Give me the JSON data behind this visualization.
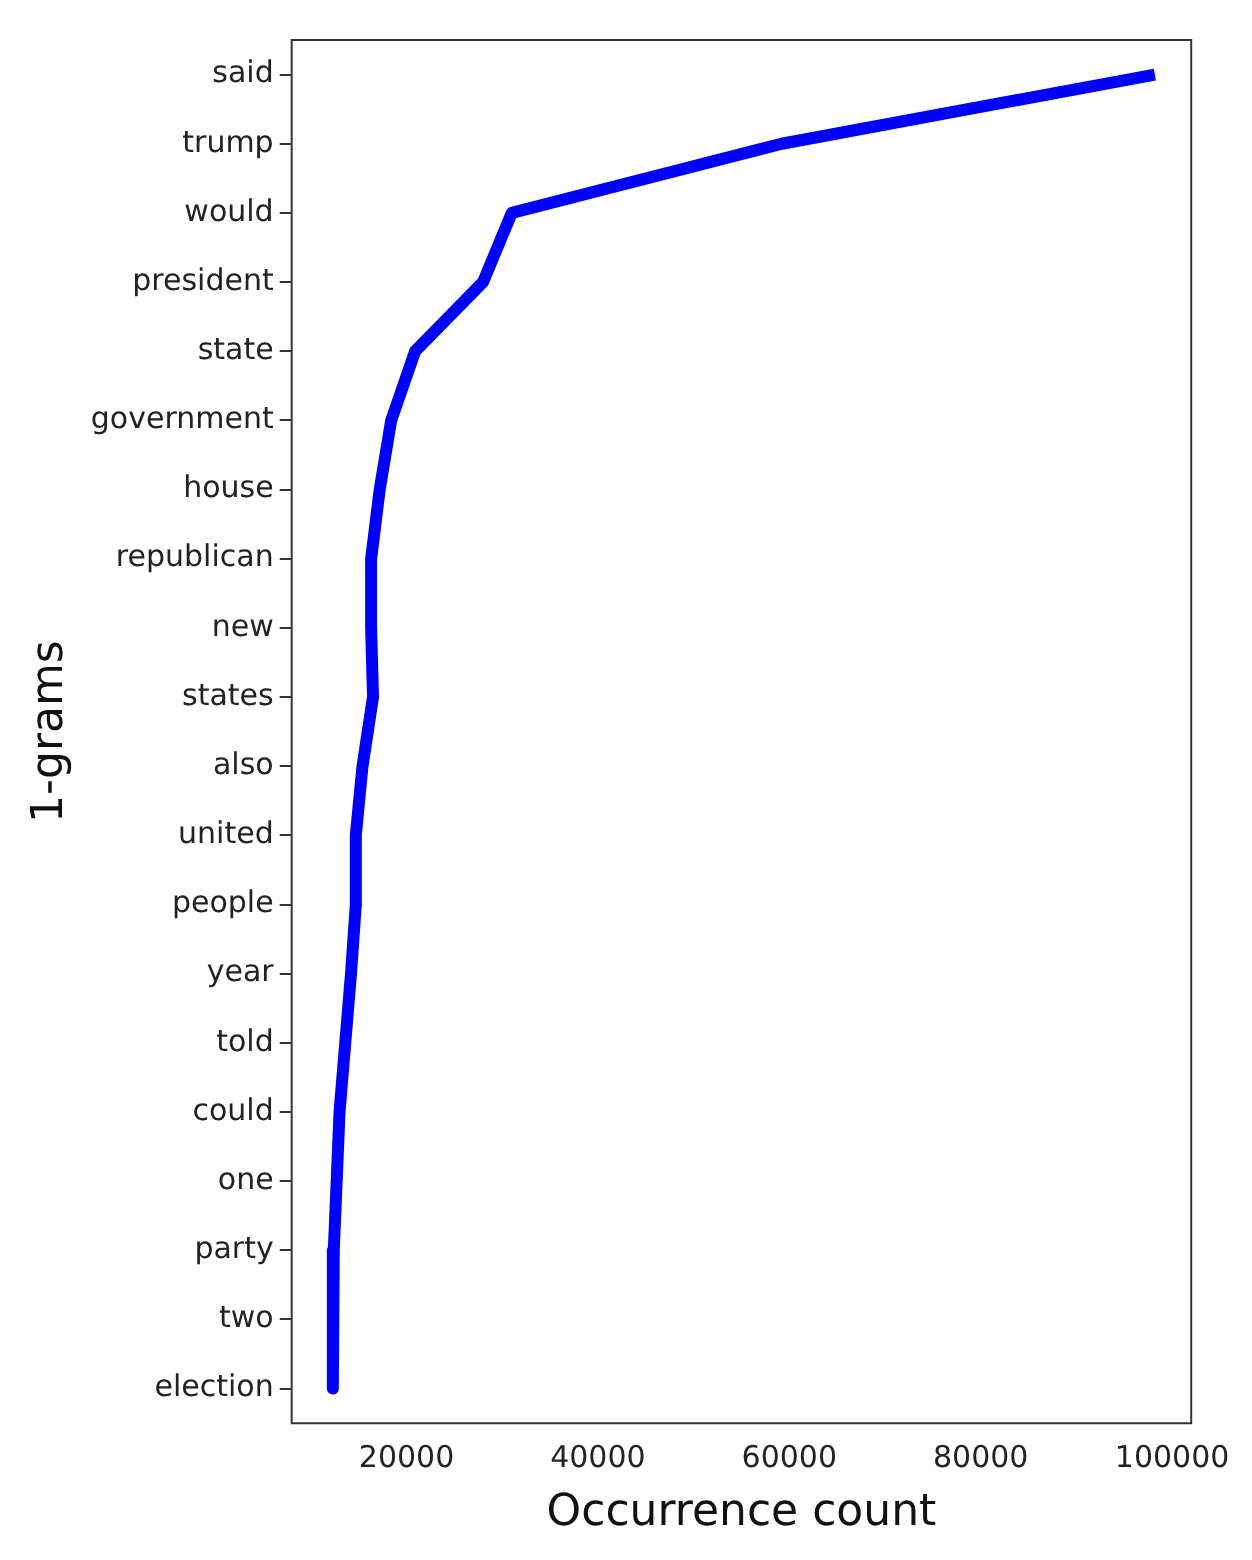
{
  "chart_data": {
    "type": "line",
    "orientation": "horizontal",
    "xlabel": "Occurrence count",
    "ylabel": "1-grams",
    "categories": [
      "said",
      "trump",
      "would",
      "president",
      "state",
      "government",
      "house",
      "republican",
      "new",
      "states",
      "also",
      "united",
      "people",
      "year",
      "told",
      "could",
      "one",
      "party",
      "two",
      "election"
    ],
    "series": [
      {
        "color": "#0000ff",
        "values": [
          98200,
          59200,
          31000,
          28000,
          20900,
          18400,
          17200,
          16300,
          16300,
          16500,
          15400,
          14700,
          14700,
          14200,
          13600,
          13000,
          12700,
          12400,
          12300,
          12300
        ]
      }
    ],
    "xlim": [
      8000,
      102000
    ],
    "xticks": [
      20000,
      40000,
      60000,
      80000,
      100000
    ],
    "grid": false,
    "legend": false,
    "marker": "none",
    "line_style": "solid"
  }
}
